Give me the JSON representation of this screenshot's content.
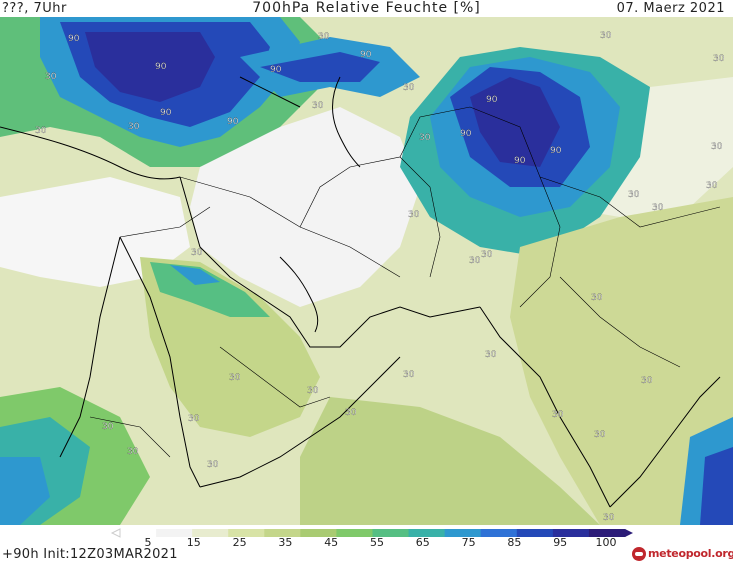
{
  "header": {
    "left": "???, 7Uhr",
    "title": "700hPa Relative Feuchte [%]",
    "date": "07. Maerz 2021"
  },
  "footer": {
    "init": "+90h Init:12Z03MAR2021",
    "logo": "meteopool.org"
  },
  "colorbar": {
    "ticks": [
      "5",
      "15",
      "25",
      "35",
      "45",
      "55",
      "65",
      "75",
      "85",
      "95",
      "100"
    ],
    "colors": [
      "#ffffff",
      "#f3f3f3",
      "#e8eccf",
      "#d8e3a6",
      "#c4d68a",
      "#a9cb72",
      "#7fc96a",
      "#56bf83",
      "#39b1a8",
      "#2e98cf",
      "#2f72d6",
      "#2449b8",
      "#2a2f9c",
      "#2c1c78"
    ]
  },
  "contour_labels": [
    "90",
    "30"
  ],
  "colors": {
    "land_dry": "#f3f3f3",
    "low": "#e4ebc8",
    "mid": "#cdd996",
    "moist": "#a9cb72",
    "green": "#7fc96a",
    "teal": "#39b1a8",
    "blue": "#2e98cf",
    "dark_blue": "#2449b8",
    "navy": "#2a2f9c",
    "border": "#000000"
  }
}
